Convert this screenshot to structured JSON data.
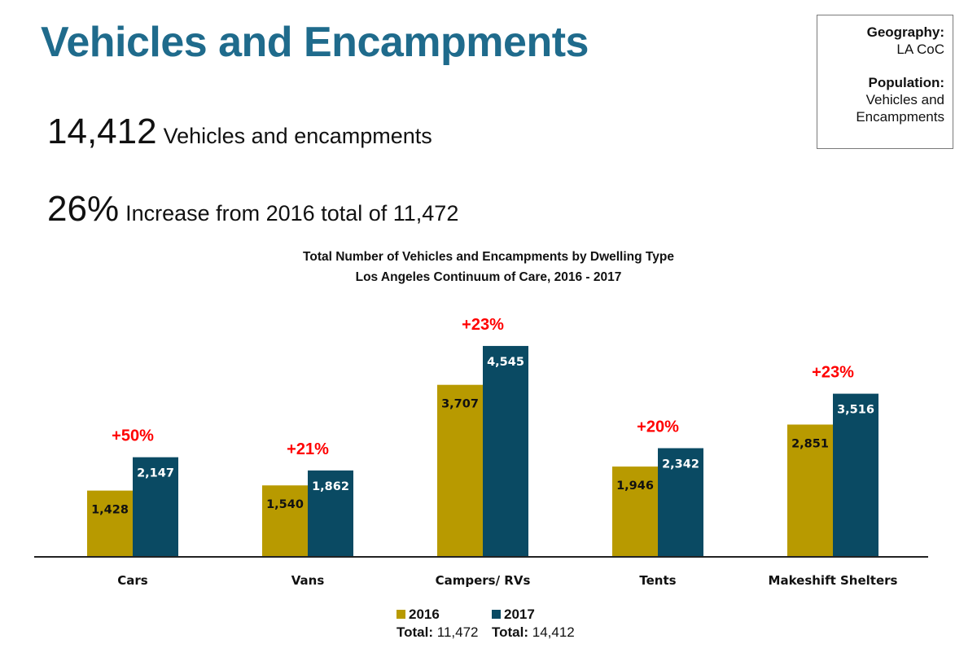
{
  "page": {
    "title": "Vehicles and Encampments",
    "info_box": {
      "geography_label": "Geography:",
      "geography_value": "LA CoC",
      "population_label": "Population:",
      "population_value_line1": "Vehicles and",
      "population_value_line2": "Encampments"
    },
    "stat1": {
      "value": "14,412",
      "text": "Vehicles and encampments"
    },
    "stat2": {
      "value": "26%",
      "text": "Increase from 2016 total of 11,472"
    }
  },
  "chart_data": {
    "type": "bar",
    "title": "Total Number of Vehicles and Encampments by Dwelling Type",
    "subtitle": "Los Angeles Continuum of Care, 2016 - 2017",
    "categories": [
      "Cars",
      "Vans",
      "Campers/ RVs",
      "Tents",
      "Makeshift Shelters"
    ],
    "series": [
      {
        "name": "2016",
        "values": [
          1428,
          1540,
          3707,
          1946,
          2851
        ],
        "labels": [
          "1,428",
          "1,540",
          "3,707",
          "1,946",
          "2,851"
        ],
        "color": "#b89a00"
      },
      {
        "name": "2017",
        "values": [
          2147,
          1862,
          4545,
          2342,
          3516
        ],
        "labels": [
          "2,147",
          "1,862",
          "4,545",
          "2,342",
          "3,516"
        ],
        "color": "#0a4a63"
      }
    ],
    "change_labels": [
      "+50%",
      "+21%",
      "+23%",
      "+20%",
      "+23%"
    ],
    "change_color": "#ff0000",
    "ylim": [
      0,
      5000
    ],
    "legend_position": "bottom",
    "legend_totals": [
      {
        "label": "Total:",
        "value": "11,472"
      },
      {
        "label": "Total:",
        "value": "14,412"
      }
    ],
    "grid": false
  }
}
